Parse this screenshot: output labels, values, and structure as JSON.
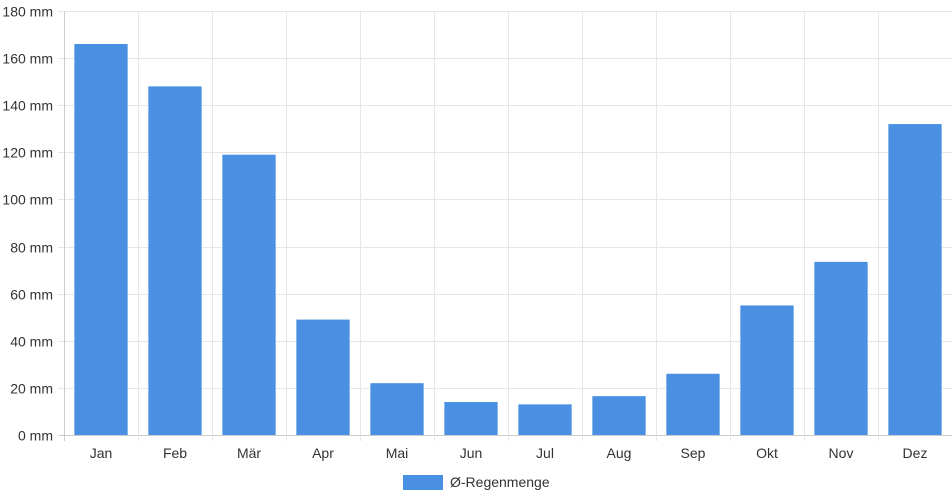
{
  "chart_data": {
    "type": "bar",
    "categories": [
      "Jan",
      "Feb",
      "Mär",
      "Apr",
      "Mai",
      "Jun",
      "Jul",
      "Aug",
      "Sep",
      "Okt",
      "Nov",
      "Dez"
    ],
    "series": [
      {
        "name": "Ø-Regenmenge",
        "values": [
          166,
          148,
          119,
          49,
          22,
          14,
          13,
          16.5,
          26,
          55,
          73.5,
          132
        ],
        "color": "#4a90e2"
      }
    ],
    "y_ticks": [
      "0 mm",
      "20 mm",
      "40 mm",
      "60 mm",
      "80 mm",
      "100 mm",
      "120 mm",
      "140 mm",
      "160 mm",
      "180 mm"
    ],
    "ylim": [
      0,
      180
    ],
    "y_unit": "mm",
    "grid": true,
    "legend_position": "bottom-center",
    "colors": {
      "grid": "#e6e6e6",
      "axis": "#cccccc",
      "text": "#333333"
    }
  }
}
